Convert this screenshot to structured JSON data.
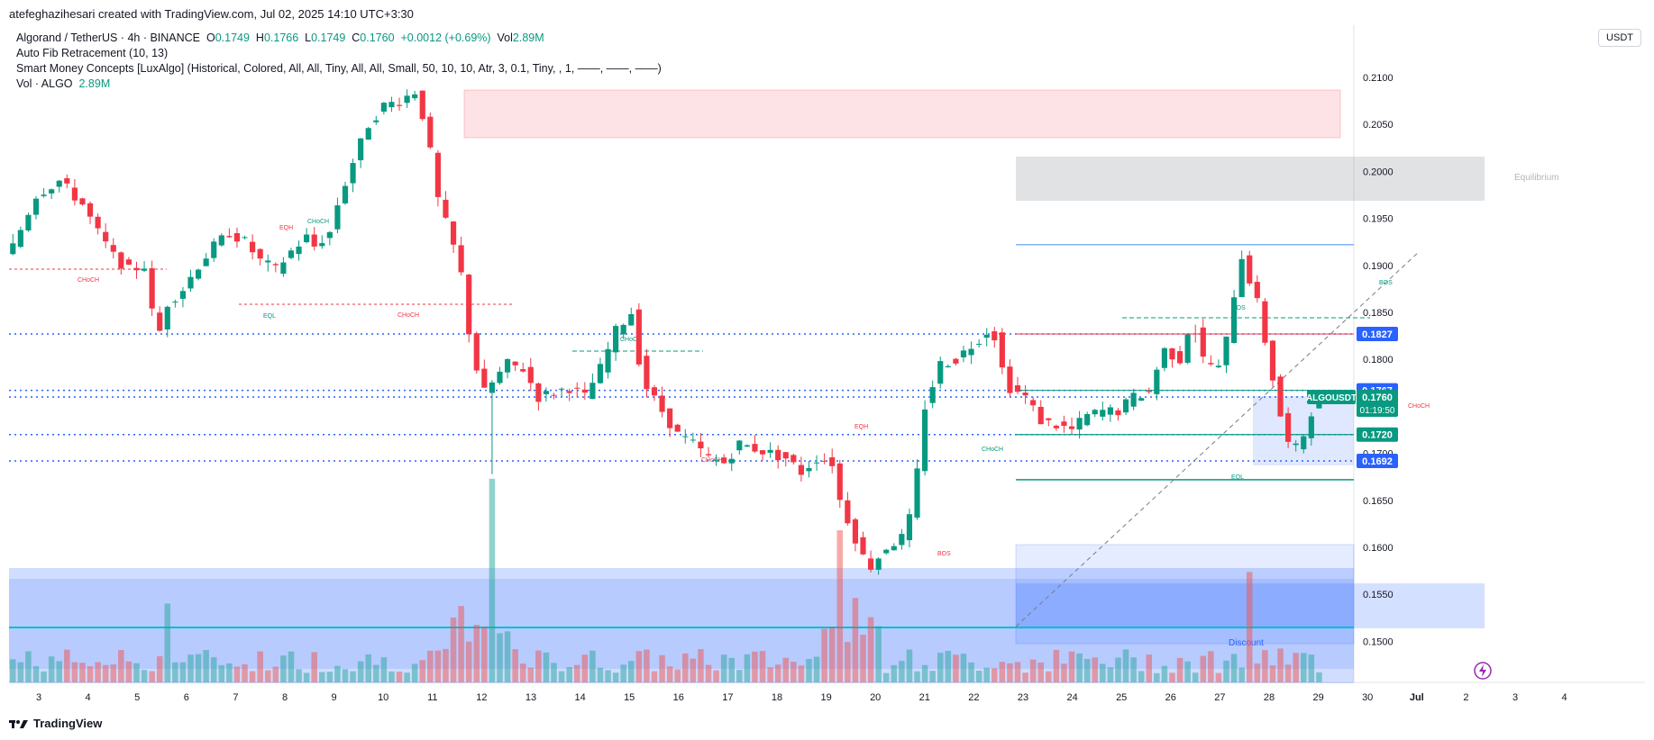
{
  "header": {
    "author_line": "atefeghazihesari created with TradingView.com, Jul 02, 2025 14:10 UTC+3:30",
    "symbol_line": "Algorand / TetherUS · 4h · BINANCE",
    "open_label": "O",
    "open": "0.1749",
    "high_label": "H",
    "high": "0.1766",
    "low_label": "L",
    "low": "0.1749",
    "close_label": "C",
    "close": "0.1760",
    "change": "+0.0012 (+0.69%)",
    "vol_label": "Vol",
    "vol": "2.89M",
    "indicator1": "Auto Fib Retracement (10, 13)",
    "indicator2": "Smart Money Concepts [LuxAlgo] (Historical, Colored, All, All, Tiny, All, All, Small, 50, 10, 10, Atr, 3, 0.1, Tiny, , 1, ——, ——, ——)",
    "indicator3_label": "Vol · ALGO",
    "indicator3_value": "2.89M",
    "currency": "USDT"
  },
  "footer": {
    "brand": "TradingView"
  },
  "colors": {
    "up": "#089981",
    "down": "#f23645",
    "blue": "#2962ff",
    "teal_label": "#089981"
  },
  "chart_data": {
    "type": "candlestick",
    "symbol": "ALGOUSDT",
    "timeframe": "4h",
    "ylim": [
      0.1465,
      0.2105
    ],
    "y_ticks": [
      "0.2100",
      "0.2050",
      "0.2000",
      "0.1950",
      "0.1900",
      "0.1850",
      "0.1800",
      "0.1750",
      "0.1700",
      "0.1650",
      "0.1600",
      "0.1550",
      "0.1500"
    ],
    "x_ticks": [
      "3",
      "4",
      "5",
      "6",
      "7",
      "8",
      "9",
      "10",
      "11",
      "12",
      "13",
      "14",
      "15",
      "16",
      "17",
      "18",
      "19",
      "20",
      "21",
      "22",
      "23",
      "24",
      "25",
      "26",
      "27",
      "28",
      "29",
      "30",
      "Jul",
      "2",
      "3",
      "4"
    ],
    "price_labels": [
      {
        "text": "0.1827",
        "value": 0.1827,
        "color": "#2962ff"
      },
      {
        "text": "0.1767",
        "value": 0.1767,
        "color": "#2962ff"
      },
      {
        "text": "0.1720",
        "value": 0.172,
        "color": "#089981"
      },
      {
        "text": "0.1692",
        "value": 0.1692,
        "color": "#2962ff"
      }
    ],
    "last_price": {
      "symbol": "ALGOUSDT",
      "price": "0.1760",
      "countdown": "01:19:50",
      "value": 0.176
    },
    "annotations": [
      {
        "text": "Equilibrium"
      },
      {
        "text": "Discount"
      },
      {
        "text": "EQL"
      },
      {
        "text": "EQH"
      },
      {
        "text": "CHoCH"
      },
      {
        "text": "BOS"
      }
    ],
    "fib_levels": [
      0.1827,
      0.1767,
      0.172,
      0.1692
    ],
    "close_path": [
      [
        0,
        0.192
      ],
      [
        3,
        0.1975
      ],
      [
        6,
        0.199
      ],
      [
        9,
        0.1965
      ],
      [
        11,
        0.1935
      ],
      [
        13,
        0.191
      ],
      [
        15,
        0.1895
      ],
      [
        17,
        0.19
      ],
      [
        18,
        0.185
      ],
      [
        19,
        0.183
      ],
      [
        20,
        0.186
      ],
      [
        22,
        0.1875
      ],
      [
        24,
        0.19
      ],
      [
        26,
        0.192
      ],
      [
        28,
        0.1935
      ],
      [
        30,
        0.1925
      ],
      [
        32,
        0.1905
      ],
      [
        34,
        0.1895
      ],
      [
        36,
        0.1915
      ],
      [
        38,
        0.193
      ],
      [
        39,
        0.192
      ],
      [
        41,
        0.1935
      ],
      [
        42,
        0.1965
      ],
      [
        44,
        0.201
      ],
      [
        46,
        0.205
      ],
      [
        48,
        0.207
      ],
      [
        50,
        0.2075
      ],
      [
        52,
        0.2085
      ],
      [
        53,
        0.206
      ],
      [
        54,
        0.202
      ],
      [
        55,
        0.197
      ],
      [
        56,
        0.1945
      ],
      [
        57,
        0.192
      ],
      [
        58,
        0.189
      ],
      [
        59,
        0.183
      ],
      [
        60,
        0.179
      ],
      [
        61,
        0.1765
      ],
      [
        62,
        0.1775
      ],
      [
        64,
        0.1795
      ],
      [
        66,
        0.179
      ],
      [
        68,
        0.176
      ],
      [
        70,
        0.1765
      ],
      [
        72,
        0.177
      ],
      [
        74,
        0.176
      ],
      [
        76,
        0.179
      ],
      [
        78,
        0.183
      ],
      [
        80,
        0.185
      ],
      [
        81,
        0.18
      ],
      [
        82,
        0.177
      ],
      [
        84,
        0.1745
      ],
      [
        86,
        0.172
      ],
      [
        88,
        0.171
      ],
      [
        90,
        0.1695
      ],
      [
        92,
        0.169
      ],
      [
        94,
        0.171
      ],
      [
        96,
        0.1705
      ],
      [
        98,
        0.17
      ],
      [
        100,
        0.1695
      ],
      [
        102,
        0.168
      ],
      [
        104,
        0.1695
      ],
      [
        106,
        0.169
      ],
      [
        107,
        0.165
      ],
      [
        108,
        0.163
      ],
      [
        109,
        0.161
      ],
      [
        110,
        0.159
      ],
      [
        111,
        0.158
      ],
      [
        113,
        0.16
      ],
      [
        115,
        0.161
      ],
      [
        116,
        0.163
      ],
      [
        117,
        0.168
      ],
      [
        118,
        0.175
      ],
      [
        120,
        0.1795
      ],
      [
        122,
        0.18
      ],
      [
        124,
        0.1815
      ],
      [
        126,
        0.183
      ],
      [
        127,
        0.1825
      ],
      [
        128,
        0.179
      ],
      [
        129,
        0.177
      ],
      [
        131,
        0.176
      ],
      [
        133,
        0.1735
      ],
      [
        135,
        0.173
      ],
      [
        137,
        0.1725
      ],
      [
        139,
        0.174
      ],
      [
        141,
        0.1745
      ],
      [
        143,
        0.1745
      ],
      [
        145,
        0.176
      ],
      [
        147,
        0.1765
      ],
      [
        148,
        0.179
      ],
      [
        149,
        0.181
      ],
      [
        151,
        0.18
      ],
      [
        152,
        0.183
      ],
      [
        153,
        0.183
      ],
      [
        154,
        0.18
      ],
      [
        156,
        0.179
      ],
      [
        157,
        0.182
      ],
      [
        158,
        0.187
      ],
      [
        159,
        0.191
      ],
      [
        160,
        0.1885
      ],
      [
        161,
        0.186
      ],
      [
        162,
        0.182
      ],
      [
        163,
        0.178
      ],
      [
        164,
        0.174
      ],
      [
        165,
        0.171
      ],
      [
        166,
        0.1705
      ],
      [
        167,
        0.172
      ],
      [
        168,
        0.1745
      ],
      [
        169,
        0.176
      ]
    ],
    "volume_spikes": [
      {
        "bar": 62,
        "relative": 1.0
      },
      {
        "bar": 20,
        "relative": 0.38
      },
      {
        "bar": 107,
        "relative": 0.5
      },
      {
        "bar": 160,
        "relative": 0.58
      }
    ]
  }
}
